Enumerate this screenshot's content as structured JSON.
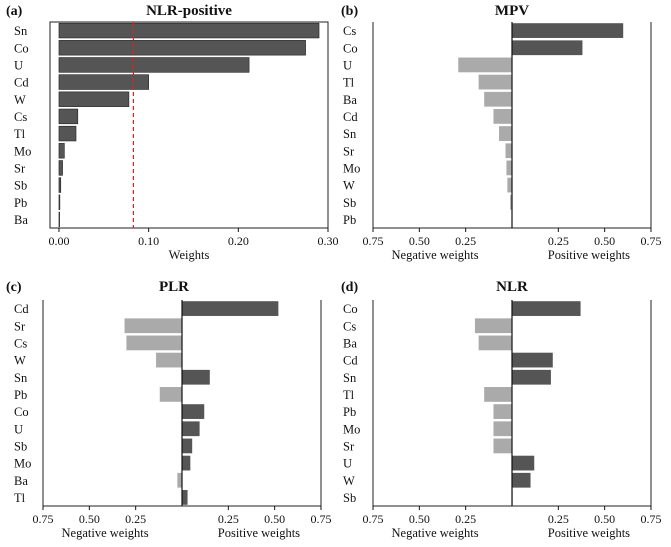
{
  "colors": {
    "dark": "#555555",
    "light": "#aaaaaa",
    "threshold": "#e02020",
    "axis": "#111111",
    "frame": "#222222"
  },
  "chart_data": [
    {
      "panel": "(a)",
      "title": "NLR-positive",
      "type": "bar",
      "orientation": "horizontal",
      "categories": [
        "Sn",
        "Co",
        "U",
        "Cd",
        "W",
        "Cs",
        "Tl",
        "Mo",
        "Sr",
        "Sb",
        "Pb",
        "Ba"
      ],
      "values": [
        0.29,
        0.275,
        0.212,
        0.1,
        0.078,
        0.021,
        0.019,
        0.006,
        0.004,
        0.002,
        0.001,
        0.0005
      ],
      "xlabel": "Weights",
      "xlim": [
        -0.01,
        0.3
      ],
      "xticks": [
        0.0,
        0.1,
        0.2,
        0.3
      ],
      "xtick_labels": [
        "0.00",
        "0.10",
        "0.20",
        "0.30"
      ],
      "threshold": 0.083
    },
    {
      "panel": "(b)",
      "title": "MPV",
      "type": "bar",
      "orientation": "horizontal-diverging",
      "categories": [
        "Cs",
        "Co",
        "U",
        "Tl",
        "Ba",
        "Cd",
        "Sn",
        "Sr",
        "Mo",
        "W",
        "Sb",
        "Pb"
      ],
      "values": [
        0.6,
        0.38,
        -0.29,
        -0.18,
        -0.15,
        -0.1,
        -0.07,
        -0.035,
        -0.03,
        -0.025,
        -0.01,
        -0.002
      ],
      "xlim": [
        -0.75,
        0.75
      ],
      "xticks": [
        -0.75,
        -0.5,
        -0.25,
        0.25,
        0.5,
        0.75
      ],
      "xtick_labels": [
        "0.75",
        "0.50",
        "0.25",
        "0.25",
        "0.50",
        "0.75"
      ],
      "xlabel_negative": "Negative weights",
      "xlabel_positive": "Positive weights"
    },
    {
      "panel": "(c)",
      "title": "PLR",
      "type": "bar",
      "orientation": "horizontal-diverging",
      "categories": [
        "Cd",
        "Sr",
        "Cs",
        "W",
        "Sn",
        "Pb",
        "Co",
        "U",
        "Sb",
        "Mo",
        "Ba",
        "Tl"
      ],
      "values": [
        0.52,
        -0.31,
        -0.3,
        -0.14,
        0.15,
        -0.12,
        0.12,
        0.095,
        0.055,
        0.045,
        -0.025,
        0.03
      ],
      "xlim": [
        -0.75,
        0.75
      ],
      "xticks": [
        -0.75,
        -0.5,
        -0.25,
        0.25,
        0.5,
        0.75
      ],
      "xtick_labels": [
        "0.75",
        "0.50",
        "0.25",
        "0.25",
        "0.50",
        "0.75"
      ],
      "xlabel_negative": "Negative weights",
      "xlabel_positive": "Positive weights"
    },
    {
      "panel": "(d)",
      "title": "NLR",
      "type": "bar",
      "orientation": "horizontal-diverging",
      "categories": [
        "Co",
        "Cs",
        "Ba",
        "Cd",
        "Sn",
        "Tl",
        "Pb",
        "Mo",
        "Sr",
        "U",
        "W",
        "Sb"
      ],
      "values": [
        0.37,
        -0.2,
        -0.18,
        0.22,
        0.21,
        -0.15,
        -0.1,
        -0.1,
        -0.1,
        0.12,
        0.1,
        0.0
      ],
      "xlim": [
        -0.75,
        0.75
      ],
      "xticks": [
        -0.75,
        -0.5,
        -0.25,
        0.25,
        0.5,
        0.75
      ],
      "xtick_labels": [
        "0.75",
        "0.50",
        "0.25",
        "0.25",
        "0.50",
        "0.75"
      ],
      "xlabel_negative": "Negative weights",
      "xlabel_positive": "Positive weights"
    }
  ]
}
